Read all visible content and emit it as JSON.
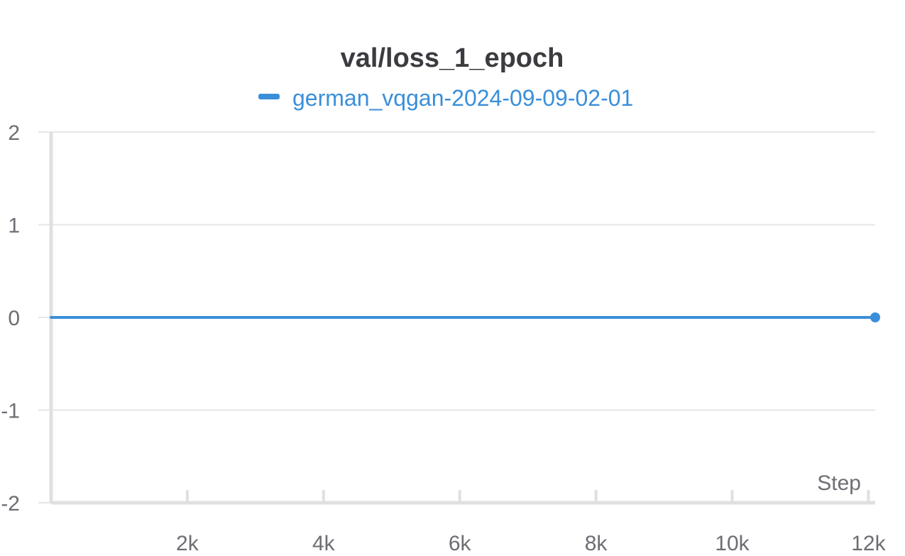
{
  "chart_data": {
    "type": "line",
    "title": "val/loss_1_epoch",
    "xlabel": "Step",
    "ylabel": "",
    "xlim": [
      0,
      12100
    ],
    "ylim": [
      -2,
      2
    ],
    "x_ticks": [
      2000,
      4000,
      6000,
      8000,
      10000,
      12000
    ],
    "x_tick_labels": [
      "2k",
      "4k",
      "6k",
      "8k",
      "10k",
      "12k"
    ],
    "y_ticks": [
      2,
      1,
      0,
      -1,
      -2
    ],
    "y_tick_labels": [
      "2",
      "1",
      "0",
      "-1",
      "-2"
    ],
    "grid": true,
    "legend_position": "top-center",
    "series": [
      {
        "name": "german_vqgan-2024-09-09-02-01",
        "color": "#3a8fd9",
        "x": [
          0,
          12100
        ],
        "y": [
          0,
          0
        ]
      }
    ]
  }
}
